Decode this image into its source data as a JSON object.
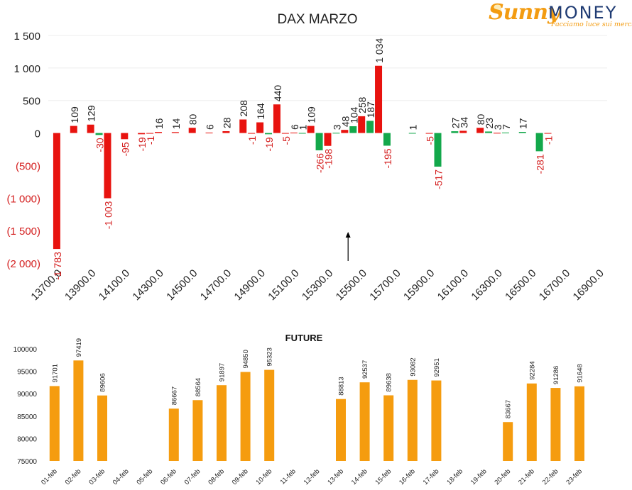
{
  "logo": {
    "sunny": "Sunny",
    "money": "MONEY",
    "tagline": "Facciamo luce sui mercati"
  },
  "colors": {
    "positive": "#e8130f",
    "negative": "#13a84b",
    "future": "#f59c0f",
    "neg_label": "#d42020",
    "axis_text": "#222222"
  },
  "chart_data": [
    {
      "type": "bar",
      "title": "DAX MARZO",
      "ylim": [
        -2000,
        1500
      ],
      "yticks": [
        1500,
        1000,
        500,
        0,
        -500,
        -1000,
        -1500,
        -2000
      ],
      "ytick_labels": [
        "1 500",
        "1 000",
        "500",
        "0",
        "(500)",
        "(1 000)",
        "(1 500)",
        "(2 000)"
      ],
      "xticks": [
        "13700.0",
        "13900.0",
        "14100.0",
        "14300.0",
        "14500.0",
        "14700.0",
        "14900.0",
        "15100.0",
        "15300.0",
        "15500.0",
        "15700.0",
        "15900.0",
        "16100.0",
        "16300.0",
        "16500.0",
        "16700.0",
        "16900.0"
      ],
      "xlim": [
        13650,
        16950
      ],
      "grid": true,
      "annotation": "arrow",
      "arrow_x": 15500,
      "series": [
        {
          "values": [
            {
              "x": 13700,
              "v": -1783,
              "label": "-1 783",
              "color": "positive"
            },
            {
              "x": 13800,
              "v": 109,
              "label": "109",
              "color": "positive"
            },
            {
              "x": 13900,
              "v": 129,
              "label": "129",
              "color": "positive"
            },
            {
              "x": 13950,
              "v": -30,
              "label": "-30",
              "color": "negative"
            },
            {
              "x": 14000,
              "v": -1003,
              "label": "-1 003",
              "color": "positive"
            },
            {
              "x": 14100,
              "v": -95,
              "label": "-95",
              "color": "positive"
            },
            {
              "x": 14200,
              "v": -19,
              "label": "-19",
              "color": "positive"
            },
            {
              "x": 14250,
              "v": -1,
              "label": "-1",
              "color": "positive"
            },
            {
              "x": 14300,
              "v": 16,
              "label": "16",
              "color": "positive"
            },
            {
              "x": 14400,
              "v": 14,
              "label": "14",
              "color": "positive"
            },
            {
              "x": 14500,
              "v": 80,
              "label": "80",
              "color": "positive"
            },
            {
              "x": 14600,
              "v": 6,
              "label": "6",
              "color": "positive"
            },
            {
              "x": 14700,
              "v": 28,
              "label": "28",
              "color": "positive"
            },
            {
              "x": 14800,
              "v": 208,
              "label": "208",
              "color": "positive"
            },
            {
              "x": 14850,
              "v": -1,
              "label": "-1",
              "color": "positive"
            },
            {
              "x": 14900,
              "v": 164,
              "label": "164",
              "color": "positive"
            },
            {
              "x": 14950,
              "v": -19,
              "label": "-19",
              "color": "negative"
            },
            {
              "x": 15000,
              "v": 440,
              "label": "440",
              "color": "positive"
            },
            {
              "x": 15050,
              "v": -5,
              "label": "-5",
              "color": "positive"
            },
            {
              "x": 15100,
              "v": 6,
              "label": "6",
              "color": "positive"
            },
            {
              "x": 15150,
              "v": 1,
              "label": "1",
              "color": "negative"
            },
            {
              "x": 15200,
              "v": 109,
              "label": "109",
              "color": "positive"
            },
            {
              "x": 15250,
              "v": -266,
              "label": "-266",
              "color": "negative"
            },
            {
              "x": 15300,
              "v": -198,
              "label": "-198",
              "color": "positive"
            },
            {
              "x": 15350,
              "v": 3,
              "label": "3",
              "color": "negative"
            },
            {
              "x": 15400,
              "v": 48,
              "label": "48",
              "color": "positive"
            },
            {
              "x": 15450,
              "v": 104,
              "label": "104",
              "color": "negative"
            },
            {
              "x": 15500,
              "v": 258,
              "label": "258",
              "color": "positive"
            },
            {
              "x": 15550,
              "v": 187,
              "label": "187",
              "color": "negative"
            },
            {
              "x": 15600,
              "v": 1034,
              "label": "1 034",
              "color": "positive"
            },
            {
              "x": 15650,
              "v": -195,
              "label": "-195",
              "color": "negative"
            },
            {
              "x": 15800,
              "v": 1,
              "label": "1",
              "color": "negative"
            },
            {
              "x": 15900,
              "v": -5,
              "label": "-5",
              "color": "positive"
            },
            {
              "x": 15950,
              "v": -517,
              "label": "-517",
              "color": "negative"
            },
            {
              "x": 16050,
              "v": 27,
              "label": "27",
              "color": "negative"
            },
            {
              "x": 16100,
              "v": 34,
              "label": "34",
              "color": "positive"
            },
            {
              "x": 16200,
              "v": 80,
              "label": "80",
              "color": "positive"
            },
            {
              "x": 16250,
              "v": 23,
              "label": "23",
              "color": "negative"
            },
            {
              "x": 16300,
              "v": 3,
              "label": "3",
              "color": "positive"
            },
            {
              "x": 16350,
              "v": 7,
              "label": "7",
              "color": "negative"
            },
            {
              "x": 16450,
              "v": 17,
              "label": "17",
              "color": "negative"
            },
            {
              "x": 16550,
              "v": -281,
              "label": "-281",
              "color": "negative"
            },
            {
              "x": 16600,
              "v": -1,
              "label": "-1",
              "color": "positive"
            }
          ]
        }
      ]
    },
    {
      "type": "bar",
      "title": "FUTURE",
      "ylim": [
        75000,
        100000
      ],
      "yticks": [
        75000,
        80000,
        85000,
        90000,
        95000,
        100000
      ],
      "ytick_labels": [
        "75000",
        "80000",
        "85000",
        "90000",
        "95000",
        "100000"
      ],
      "categories": [
        "01-feb",
        "02-feb",
        "03-feb",
        "04-feb",
        "05-feb",
        "06-feb",
        "07-feb",
        "08-feb",
        "09-feb",
        "10-feb",
        "11-feb",
        "12-feb",
        "13-feb",
        "14-feb",
        "15-feb",
        "16-feb",
        "17-feb",
        "18-feb",
        "19-feb",
        "20-feb",
        "21-feb",
        "22-feb",
        "23-feb"
      ],
      "values": [
        91701,
        97419,
        89606,
        null,
        null,
        86667,
        88564,
        91897,
        94850,
        95323,
        null,
        null,
        88813,
        92537,
        89638,
        93082,
        92951,
        null,
        null,
        83667,
        92284,
        91286,
        91648
      ],
      "grid": false
    }
  ]
}
